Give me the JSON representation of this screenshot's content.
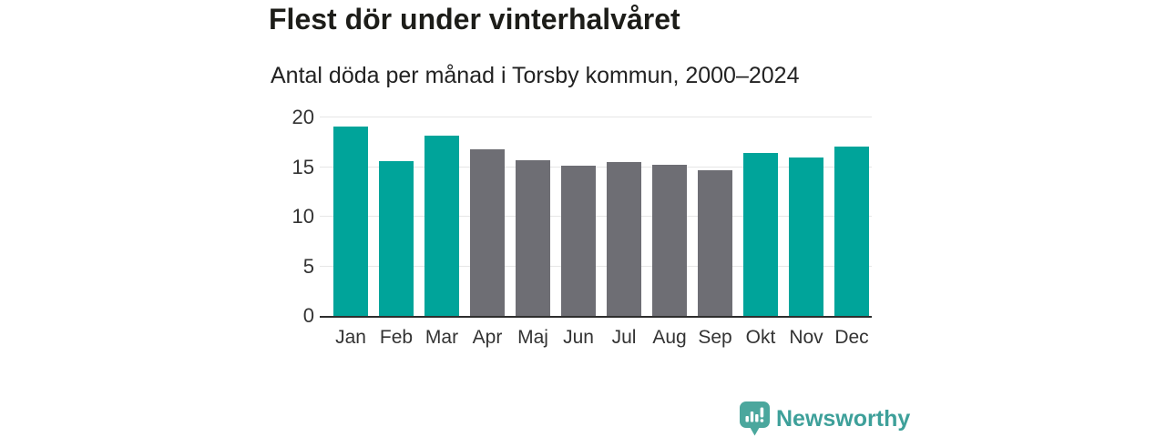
{
  "chart_data": {
    "type": "bar",
    "title": "Flest dör under vinterhalvåret",
    "subtitle": "Antal döda per månad i Torsby kommun, 2000–2024",
    "categories": [
      "Jan",
      "Feb",
      "Mar",
      "Apr",
      "Maj",
      "Jun",
      "Jul",
      "Aug",
      "Sep",
      "Okt",
      "Nov",
      "Dec"
    ],
    "values": [
      19.1,
      15.6,
      18.2,
      16.8,
      15.7,
      15.1,
      15.5,
      15.2,
      14.7,
      16.4,
      16.0,
      17.1
    ],
    "bar_color_keys": [
      "winter",
      "winter",
      "winter",
      "summer",
      "summer",
      "summer",
      "summer",
      "summer",
      "summer",
      "winter",
      "winter",
      "winter"
    ],
    "colors": {
      "winter": "#00A49A",
      "summer": "#6E6E74"
    },
    "xlabel": "",
    "ylabel": "",
    "ylim": [
      0,
      20
    ],
    "yticks": [
      0,
      5,
      10,
      15,
      20
    ],
    "grid": "horizontal",
    "legend": "none"
  },
  "branding": {
    "label": "Newsworthy",
    "text_color": "#3EA09A",
    "icon_color": "#4BA79D",
    "icon_name": "newsworthy-speech-bubble-bar-chart-icon"
  }
}
